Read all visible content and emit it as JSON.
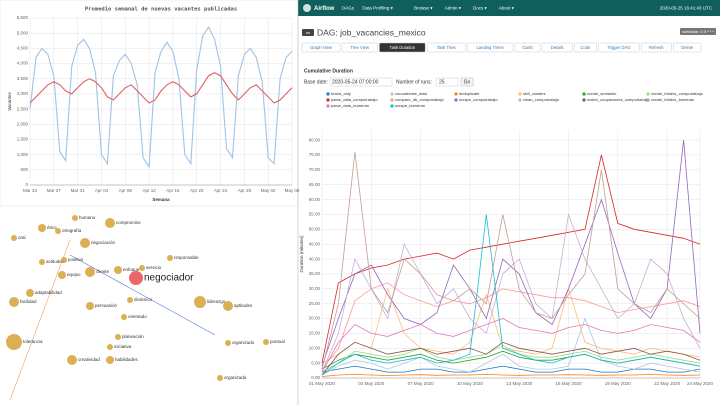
{
  "navbar": {
    "brand": "Airflow",
    "items": [
      "DAGs",
      "Data Profiling ▾",
      "Browse ▾",
      "Admin ▾",
      "Docs ▾",
      "About ▾"
    ],
    "time": "2020-05-25 16:41:43 UTC"
  },
  "dag": {
    "badge": "on",
    "title": "DAG: job_vacancies_mexico",
    "schedule": "schedule: 0 3 * * *"
  },
  "buttons": [
    "Graph View",
    "Tree View",
    "Task Duration",
    "Task Tries",
    "Landing Times",
    "Gantt",
    "Details",
    "Code",
    "Trigger DAG",
    "Refresh",
    "Delete"
  ],
  "active_button": 2,
  "form": {
    "heading": "Cumulative Duration",
    "base_date_label": "Base date:",
    "base_date": "2020-05-24 07:00:00",
    "runs_label": "Number of runs:",
    "runs": "25",
    "go": "Go"
  },
  "network": {
    "highlight": 12,
    "nodes": [
      "humano",
      "ético",
      "ortografía",
      "compromiso",
      "negociación",
      "oral",
      "actitudes",
      "positivo",
      "equipo",
      "cliente",
      "enfoque",
      "servicio",
      "negociador",
      "responsable",
      "adaptabilidad",
      "facilidad",
      "persuasión",
      "dinámico",
      "liderazgo",
      "aptitudes",
      "orientado",
      "tolerancia",
      "planeación",
      "iniciativa",
      "creatividad",
      "habilidades",
      "organizado",
      "puntual",
      "organizada"
    ]
  },
  "chart_data": [
    {
      "type": "line",
      "title": "Promedio semanal de nuevas vacantes publicadas",
      "xlabel": "Semana",
      "ylabel": "Vacantes",
      "grid": true,
      "categories": [
        "Mar 23",
        null,
        null,
        null,
        "Mar 27",
        null,
        null,
        null,
        "Mar 31",
        null,
        null,
        null,
        "Apr 04",
        null,
        null,
        null,
        "Apr 08",
        null,
        null,
        null,
        "Apr 12",
        null,
        null,
        null,
        "Apr 16",
        null,
        null,
        null,
        "Apr 20",
        null,
        null,
        null,
        "Apr 24",
        null,
        null,
        null,
        "Apr 28",
        null,
        null,
        null,
        "May 02",
        null,
        null,
        null,
        "May 06"
      ],
      "series": [
        {
          "color": "#9ec3e6",
          "values": [
            2500,
            4200,
            4500,
            4300,
            3600,
            1100,
            800,
            3900,
            4600,
            4800,
            4500,
            3700,
            1000,
            700,
            3600,
            4100,
            4300,
            4000,
            3300,
            900,
            600,
            3700,
            4400,
            4700,
            4400,
            3500,
            1000,
            700,
            3800,
            4900,
            5200,
            4800,
            3900,
            1200,
            900,
            3600,
            4300,
            4500,
            4200,
            3400,
            900,
            700,
            3500,
            4200,
            4400
          ]
        },
        {
          "color": "#e0605e",
          "values": [
            2700,
            2900,
            3100,
            3300,
            3400,
            3300,
            3100,
            3000,
            3200,
            3400,
            3500,
            3400,
            3200,
            2900,
            2800,
            3000,
            3200,
            3300,
            3100,
            2900,
            2700,
            2800,
            3100,
            3300,
            3400,
            3300,
            3100,
            2900,
            3000,
            3300,
            3600,
            3700,
            3600,
            3300,
            3000,
            2800,
            3000,
            3200,
            3300,
            3100,
            2900,
            2700,
            2800,
            3000,
            3200
          ]
        }
      ],
      "ylim": [
        0,
        5500
      ],
      "yticks": [
        0,
        500,
        {
          "value": 1000,
          "label": "1,000"
        },
        {
          "value": 1500,
          "label": "1,500"
        },
        {
          "value": 2000,
          "label": "2,000"
        },
        {
          "value": 2500,
          "label": "2,500"
        },
        {
          "value": 3000,
          "label": "3,000"
        },
        {
          "value": 3500,
          "label": "3,500"
        },
        {
          "value": 4000,
          "label": "4,000"
        },
        {
          "value": 4500,
          "label": "4,500"
        },
        {
          "value": 5000,
          "label": "5,000"
        },
        {
          "value": 5500,
          "label": "5,500"
        }
      ]
    },
    {
      "type": "line",
      "ylabel": "Duration (minutes)",
      "grid": true,
      "categories": [
        "01 May 2020",
        null,
        null,
        "04 May 2020",
        null,
        null,
        "07 May 2020",
        null,
        null,
        "10 May 2020",
        null,
        null,
        "13 May 2020",
        null,
        null,
        "16 May 2020",
        null,
        null,
        "19 May 2020",
        null,
        null,
        "22 May 2020",
        null,
        "24 May 2020"
      ],
      "series": [
        {
          "name": "brand_only",
          "color": "#1f77b4",
          "values": [
            2,
            3,
            4,
            3,
            2,
            2,
            3,
            3,
            2,
            2,
            3,
            4,
            3,
            2,
            2,
            3,
            3,
            2,
            2,
            3,
            3,
            2,
            2,
            3
          ]
        },
        {
          "name": "concatenate_data",
          "color": "#aec7e8",
          "values": [
            1,
            4,
            6,
            5,
            3,
            5,
            7,
            4,
            3,
            2,
            5,
            8,
            4,
            3,
            3,
            4,
            20,
            6,
            4,
            3,
            5,
            4,
            3,
            2
          ]
        },
        {
          "name": "deduplicate",
          "color": "#ff7f0e",
          "values": [
            0.5,
            1,
            1.2,
            1,
            0.8,
            1,
            1.1,
            0.9,
            1,
            1,
            1.2,
            1,
            0.9,
            1,
            1,
            1.1,
            1,
            0.9,
            1,
            1,
            1.2,
            1,
            0.9,
            1
          ]
        },
        {
          "name": "skill_clusters",
          "color": "#ffbb78",
          "values": [
            5,
            8,
            12,
            10,
            30,
            15,
            10,
            9,
            8,
            12,
            28,
            10,
            9,
            8,
            10,
            30,
            12,
            10,
            9,
            8,
            10,
            9,
            8,
            7
          ]
        },
        {
          "name": "create_semantic",
          "color": "#2ca02c",
          "values": [
            3,
            6,
            8,
            7,
            6,
            7,
            8,
            6,
            5,
            6,
            7,
            9,
            7,
            6,
            6,
            7,
            8,
            6,
            5,
            6,
            7,
            6,
            5,
            4
          ]
        },
        {
          "name": "create_folders_computrabajo",
          "color": "#98df8a",
          "values": [
            2,
            5,
            9,
            8,
            7,
            8,
            10,
            7,
            6,
            7,
            8,
            11,
            8,
            7,
            7,
            8,
            9,
            7,
            6,
            7,
            8,
            7,
            6,
            5
          ]
        },
        {
          "name": "parse_data_computrabajo",
          "color": "#d62728",
          "values": [
            5,
            32,
            35,
            37,
            38,
            40,
            41,
            42,
            40,
            43,
            44,
            45,
            46,
            47,
            48,
            49,
            50,
            75,
            52,
            50,
            49,
            48,
            47,
            45
          ]
        },
        {
          "name": "compare_db_computrabajo",
          "color": "#ff9896",
          "values": [
            3,
            10,
            26,
            30,
            32,
            28,
            26,
            24,
            26,
            25,
            27,
            30,
            29,
            28,
            27,
            27,
            26,
            24,
            22,
            23,
            24,
            25,
            26,
            24
          ]
        },
        {
          "name": "scrape_computrabajo",
          "color": "#9467bd",
          "values": [
            4,
            20,
            35,
            38,
            28,
            20,
            18,
            22,
            38,
            30,
            20,
            40,
            35,
            22,
            18,
            30,
            45,
            60,
            42,
            25,
            20,
            30,
            80,
            15
          ]
        },
        {
          "name": "clean_computrabajo",
          "color": "#c5b0d5",
          "values": [
            2,
            15,
            40,
            30,
            20,
            45,
            35,
            25,
            30,
            20,
            15,
            35,
            40,
            25,
            20,
            55,
            40,
            30,
            20,
            25,
            40,
            35,
            20,
            10
          ]
        },
        {
          "name": "match_ocupaciones_computrabajo",
          "color": "#8c564b",
          "values": [
            1,
            8,
            12,
            10,
            8,
            9,
            10,
            8,
            9,
            10,
            8,
            12,
            10,
            9,
            8,
            9,
            10,
            8,
            9,
            10,
            8,
            9,
            8,
            6
          ]
        },
        {
          "name": "create_folders_bumeran",
          "color": "#c49c94",
          "values": [
            3,
            25,
            76,
            30,
            22,
            40,
            35,
            28,
            26,
            30,
            25,
            55,
            30,
            22,
            20,
            28,
            35,
            70,
            30,
            25,
            22,
            30,
            25,
            20
          ]
        },
        {
          "name": "parse_data_bumeran",
          "color": "#e377c2",
          "values": [
            2,
            12,
            18,
            15,
            14,
            16,
            18,
            15,
            14,
            16,
            18,
            20,
            17,
            16,
            15,
            17,
            18,
            16,
            15,
            16,
            18,
            17,
            16,
            12
          ]
        },
        {
          "name": "scrape_bumeran",
          "color": "#17becf",
          "values": [
            1,
            5,
            8,
            6,
            5,
            6,
            7,
            5,
            6,
            8,
            55,
            10,
            8,
            6,
            5,
            7,
            8,
            6,
            5,
            6,
            7,
            6,
            5,
            4
          ]
        }
      ],
      "ylim": [
        0,
        83.41
      ],
      "yticks": [
        {
          "value": 0,
          "label": "0.00"
        },
        {
          "value": 5,
          "label": "5.00"
        },
        {
          "value": 10,
          "label": "10.00"
        },
        {
          "value": 15,
          "label": "15.00"
        },
        {
          "value": 20,
          "label": "20.00"
        },
        {
          "value": 25,
          "label": "25.00"
        },
        {
          "value": 30,
          "label": "30.00"
        },
        {
          "value": 35,
          "label": "35.00"
        },
        {
          "value": 40,
          "label": "40.00"
        },
        {
          "value": 45,
          "label": "45.00"
        },
        {
          "value": 50,
          "label": "50.00"
        },
        {
          "value": 55,
          "label": "55.00"
        },
        {
          "value": 60,
          "label": "60.00"
        },
        {
          "value": 65,
          "label": "65.00"
        },
        {
          "value": 70,
          "label": "70.00"
        },
        {
          "value": 75,
          "label": "75.00"
        },
        {
          "value": 80,
          "label": "80.00"
        }
      ]
    }
  ]
}
